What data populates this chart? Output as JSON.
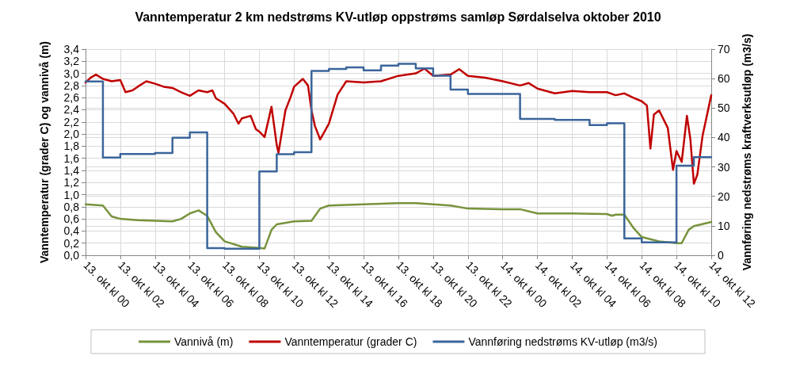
{
  "chart_data": {
    "type": "line",
    "title": "Vanntemperatur 2 km nedstrøms KV-utløp oppstrøms samløp Sørdalselva oktober 2010",
    "ylabel": "Vanntemperatur (grader C) og vannivå (m)",
    "y2label": "Vannføring nedstrøms kraftverksutløp (m3/s)",
    "xlim": [
      "2010-10-13T00:00",
      "2010-10-14T12:00"
    ],
    "xticks": [
      {
        "value": "2010-10-13T00:00",
        "label": "13. okt kl 00"
      },
      {
        "value": "2010-10-13T02:00",
        "label": "13. okt kl 02"
      },
      {
        "value": "2010-10-13T04:00",
        "label": "13. okt kl 04"
      },
      {
        "value": "2010-10-13T06:00",
        "label": "13. okt kl 06"
      },
      {
        "value": "2010-10-13T08:00",
        "label": "13. okt kl 08"
      },
      {
        "value": "2010-10-13T10:00",
        "label": "13. okt kl 10"
      },
      {
        "value": "2010-10-13T12:00",
        "label": "13. okt kl 12"
      },
      {
        "value": "2010-10-13T14:00",
        "label": "13. okt kl 14"
      },
      {
        "value": "2010-10-13T16:00",
        "label": "13. okt kl 16"
      },
      {
        "value": "2010-10-13T18:00",
        "label": "13. okt kl 18"
      },
      {
        "value": "2010-10-13T20:00",
        "label": "13. okt kl 20"
      },
      {
        "value": "2010-10-13T22:00",
        "label": "13. okt kl 22"
      },
      {
        "value": "2010-10-14T00:00",
        "label": "14. okt kl 00"
      },
      {
        "value": "2010-10-14T02:00",
        "label": "14. okt kl 02"
      },
      {
        "value": "2010-10-14T04:00",
        "label": "14. okt kl 04"
      },
      {
        "value": "2010-10-14T06:00",
        "label": "14. okt kl 06"
      },
      {
        "value": "2010-10-14T08:00",
        "label": "14. okt kl 08"
      },
      {
        "value": "2010-10-14T10:00",
        "label": "14. okt kl 10"
      },
      {
        "value": "2010-10-14T12:00",
        "label": "14. okt kl 12"
      }
    ],
    "ylim": [
      0,
      3.4
    ],
    "yticks": [
      {
        "value": 0,
        "label": "0,0"
      },
      {
        "value": 0.2,
        "label": "0,2"
      },
      {
        "value": 0.4,
        "label": "0,4"
      },
      {
        "value": 0.6,
        "label": "0,6"
      },
      {
        "value": 0.8,
        "label": "0,8"
      },
      {
        "value": 1.0,
        "label": "1,0"
      },
      {
        "value": 1.2,
        "label": "1,2"
      },
      {
        "value": 1.4,
        "label": "1,4"
      },
      {
        "value": 1.6,
        "label": "1,6"
      },
      {
        "value": 1.8,
        "label": "1,8"
      },
      {
        "value": 2.0,
        "label": "2,0"
      },
      {
        "value": 2.2,
        "label": "2,2"
      },
      {
        "value": 2.4,
        "label": "2,4"
      },
      {
        "value": 2.6,
        "label": "2,6"
      },
      {
        "value": 2.8,
        "label": "2,8"
      },
      {
        "value": 3.0,
        "label": "3,0"
      },
      {
        "value": 3.2,
        "label": "3,2"
      },
      {
        "value": 3.4,
        "label": "3,4"
      }
    ],
    "y2lim": [
      0,
      70
    ],
    "y2ticks": [
      0,
      10,
      20,
      30,
      40,
      50,
      60,
      70
    ],
    "grid": true,
    "legend": "bottom",
    "marker": "none",
    "series": [
      {
        "name": "Vannivå (m)",
        "color": "#77933c",
        "x": [
          "2010-10-13T00:00",
          "2010-10-13T01:00",
          "2010-10-13T01:30",
          "2010-10-13T02:00",
          "2010-10-13T03:00",
          "2010-10-13T04:00",
          "2010-10-13T05:00",
          "2010-10-13T05:30",
          "2010-10-13T06:00",
          "2010-10-13T06:30",
          "2010-10-13T07:00",
          "2010-10-13T07:30",
          "2010-10-13T08:00",
          "2010-10-13T09:00",
          "2010-10-13T10:00",
          "2010-10-13T10:18",
          "2010-10-13T10:42",
          "2010-10-13T11:00",
          "2010-10-13T12:00",
          "2010-10-13T13:00",
          "2010-10-13T13:30",
          "2010-10-13T14:00",
          "2010-10-13T16:00",
          "2010-10-13T18:00",
          "2010-10-13T19:00",
          "2010-10-13T20:00",
          "2010-10-13T21:00",
          "2010-10-13T22:00",
          "2010-10-14T00:00",
          "2010-10-14T01:00",
          "2010-10-14T02:00",
          "2010-10-14T04:00",
          "2010-10-14T06:00",
          "2010-10-14T06:18",
          "2010-10-14T06:30",
          "2010-10-14T07:00",
          "2010-10-14T07:30",
          "2010-10-14T08:00",
          "2010-10-14T09:00",
          "2010-10-14T10:00",
          "2010-10-14T10:18",
          "2010-10-14T10:42",
          "2010-10-14T11:00",
          "2010-10-14T12:00"
        ],
        "values": [
          0.84,
          0.82,
          0.64,
          0.6,
          0.58,
          0.57,
          0.56,
          0.6,
          0.69,
          0.74,
          0.65,
          0.38,
          0.23,
          0.14,
          0.12,
          0.11,
          0.42,
          0.51,
          0.56,
          0.57,
          0.77,
          0.82,
          0.84,
          0.86,
          0.86,
          0.84,
          0.82,
          0.77,
          0.76,
          0.76,
          0.69,
          0.69,
          0.68,
          0.65,
          0.67,
          0.67,
          0.46,
          0.3,
          0.23,
          0.2,
          0.2,
          0.42,
          0.48,
          0.55
        ]
      },
      {
        "name": "Vanntemperatur (grader C)",
        "color": "#c00000",
        "x": [
          "2010-10-13T00:00",
          "2010-10-13T00:18",
          "2010-10-13T00:36",
          "2010-10-13T01:00",
          "2010-10-13T01:30",
          "2010-10-13T02:00",
          "2010-10-13T02:18",
          "2010-10-13T02:42",
          "2010-10-13T03:00",
          "2010-10-13T03:30",
          "2010-10-13T04:00",
          "2010-10-13T04:30",
          "2010-10-13T05:00",
          "2010-10-13T05:30",
          "2010-10-13T06:00",
          "2010-10-13T06:30",
          "2010-10-13T07:00",
          "2010-10-13T07:18",
          "2010-10-13T07:30",
          "2010-10-13T08:00",
          "2010-10-13T08:30",
          "2010-10-13T08:48",
          "2010-10-13T09:00",
          "2010-10-13T09:30",
          "2010-10-13T09:48",
          "2010-10-13T10:00",
          "2010-10-13T10:18",
          "2010-10-13T10:42",
          "2010-10-13T11:00",
          "2010-10-13T11:06",
          "2010-10-13T11:30",
          "2010-10-13T11:48",
          "2010-10-13T12:00",
          "2010-10-13T12:30",
          "2010-10-13T12:48",
          "2010-10-13T13:00",
          "2010-10-13T13:12",
          "2010-10-13T13:30",
          "2010-10-13T14:00",
          "2010-10-13T14:30",
          "2010-10-13T15:00",
          "2010-10-13T16:00",
          "2010-10-13T17:00",
          "2010-10-13T18:00",
          "2010-10-13T19:00",
          "2010-10-13T19:30",
          "2010-10-13T20:00",
          "2010-10-13T21:00",
          "2010-10-13T21:30",
          "2010-10-13T22:00",
          "2010-10-13T23:00",
          "2010-10-14T00:00",
          "2010-10-14T01:00",
          "2010-10-14T01:30",
          "2010-10-14T02:00",
          "2010-10-14T03:00",
          "2010-10-14T04:00",
          "2010-10-14T05:00",
          "2010-10-14T06:00",
          "2010-10-14T06:30",
          "2010-10-14T07:00",
          "2010-10-14T07:30",
          "2010-10-14T08:00",
          "2010-10-14T08:18",
          "2010-10-14T08:30",
          "2010-10-14T08:42",
          "2010-10-14T09:00",
          "2010-10-14T09:30",
          "2010-10-14T09:48",
          "2010-10-14T10:00",
          "2010-10-14T10:18",
          "2010-10-14T10:36",
          "2010-10-14T10:48",
          "2010-10-14T11:00",
          "2010-10-14T11:12",
          "2010-10-14T11:30",
          "2010-10-14T12:00"
        ],
        "values": [
          2.85,
          2.93,
          2.98,
          2.91,
          2.87,
          2.89,
          2.69,
          2.72,
          2.78,
          2.87,
          2.83,
          2.78,
          2.76,
          2.69,
          2.63,
          2.72,
          2.69,
          2.72,
          2.59,
          2.5,
          2.34,
          2.17,
          2.26,
          2.3,
          2.08,
          2.04,
          1.95,
          2.45,
          1.82,
          1.69,
          2.39,
          2.61,
          2.78,
          2.91,
          2.8,
          2.39,
          2.13,
          1.91,
          2.17,
          2.65,
          2.87,
          2.85,
          2.87,
          2.96,
          3.0,
          3.08,
          2.96,
          2.98,
          3.07,
          2.96,
          2.93,
          2.87,
          2.8,
          2.84,
          2.75,
          2.67,
          2.71,
          2.69,
          2.69,
          2.64,
          2.67,
          2.6,
          2.54,
          2.47,
          1.76,
          2.32,
          2.39,
          2.1,
          1.41,
          1.72,
          1.54,
          2.3,
          1.91,
          1.18,
          1.33,
          1.97,
          2.64
        ]
      },
      {
        "name": "Vannføring nedstrøms KV-utløp (m3/s)",
        "type": "step",
        "axis": "y2",
        "color": "#3b659b",
        "x": [
          "2010-10-13T00:00",
          "2010-10-13T01:00",
          "2010-10-13T02:00",
          "2010-10-13T04:00",
          "2010-10-13T05:00",
          "2010-10-13T06:00",
          "2010-10-13T07:00",
          "2010-10-13T08:00",
          "2010-10-13T10:00",
          "2010-10-13T11:00",
          "2010-10-13T12:00",
          "2010-10-13T13:00",
          "2010-10-13T14:00",
          "2010-10-13T15:00",
          "2010-10-13T16:00",
          "2010-10-13T17:00",
          "2010-10-13T18:00",
          "2010-10-13T19:00",
          "2010-10-13T20:00",
          "2010-10-13T21:00",
          "2010-10-13T22:00",
          "2010-10-14T01:00",
          "2010-10-14T03:00",
          "2010-10-14T05:00",
          "2010-10-14T06:00",
          "2010-10-14T07:00",
          "2010-10-14T08:00",
          "2010-10-14T10:00",
          "2010-10-14T11:00",
          "2010-10-14T12:00"
        ],
        "values": [
          59.0,
          33.2,
          34.4,
          34.7,
          39.9,
          41.7,
          2.4,
          2.2,
          28.5,
          34.3,
          35.0,
          62.6,
          63.3,
          63.8,
          62.8,
          64.4,
          65.0,
          63.5,
          61.0,
          56.3,
          54.8,
          46.3,
          46.0,
          44.2,
          44.8,
          5.7,
          4.4,
          30.4,
          33.3,
          33.3
        ]
      }
    ]
  }
}
